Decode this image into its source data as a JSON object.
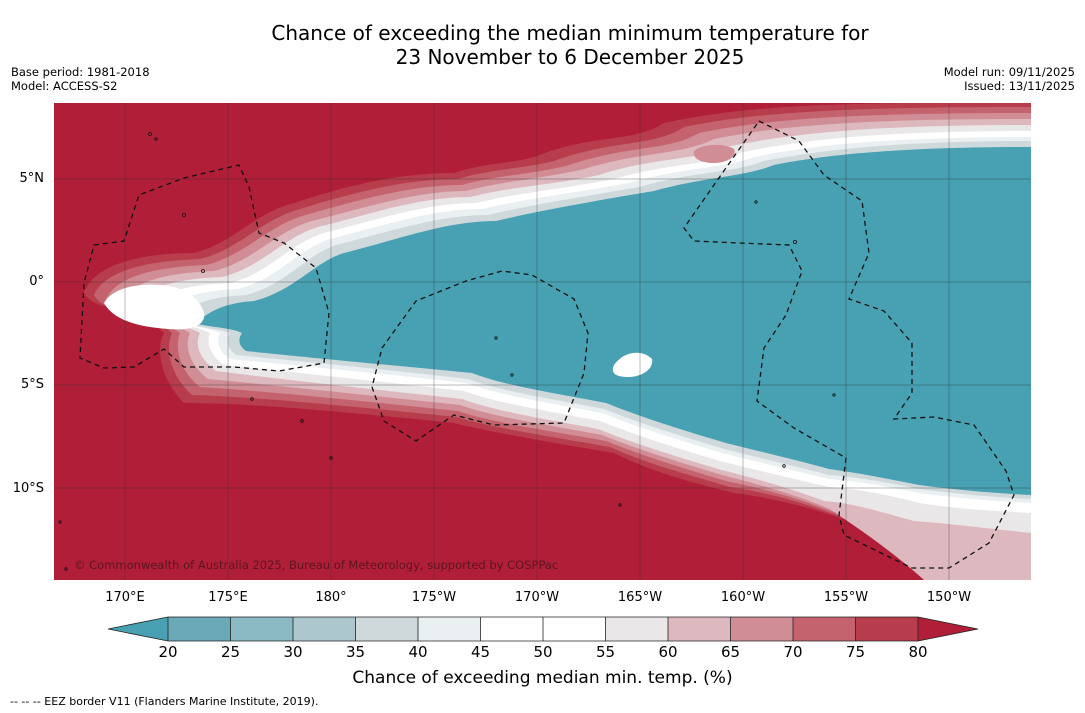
{
  "title": {
    "line1": "Chance of exceeding the median minimum temperature for",
    "line2": "23 November to 6 December 2025"
  },
  "meta_left": {
    "base_period": "Base period: 1981-2018",
    "model": "Model: ACCESS-S2"
  },
  "meta_right": {
    "model_run": "Model run: 09/11/2025",
    "issued": "Issued: 13/11/2025"
  },
  "map": {
    "copyright": "© Commonwealth of Australia 2025, Bureau of Meteorology, supported by COSPPac",
    "lat_labels": [
      "5°N",
      "0°",
      "5°S",
      "10°S"
    ],
    "lon_labels": [
      "170°E",
      "175°E",
      "180°",
      "175°W",
      "170°W",
      "165°W",
      "160°W",
      "155°W",
      "150°W"
    ]
  },
  "colorbar": {
    "title": "Chance of exceeding median min. temp. (%)",
    "ticks": [
      "20",
      "25",
      "30",
      "35",
      "40",
      "45",
      "50",
      "55",
      "60",
      "65",
      "70",
      "75",
      "80"
    ],
    "colors": {
      "below_20": "#47a1b2",
      "20_25": "#6aaab8",
      "25_30": "#8bbac5",
      "30_35": "#acc8ce",
      "35_40": "#cfd9dc",
      "40_45": "#eaeff1",
      "45_50": "#ffffff",
      "50_55": "#ffffff",
      "55_60": "#e9e7e8",
      "60_65": "#ddb8be",
      "65_70": "#d18d95",
      "70_75": "#c4636e",
      "75_80": "#b83d4c",
      "above_80": "#b11e38"
    }
  },
  "footer": {
    "legend": "--  --  -- EEZ border V11 (Flanders Marine Institute, 2019)."
  }
}
